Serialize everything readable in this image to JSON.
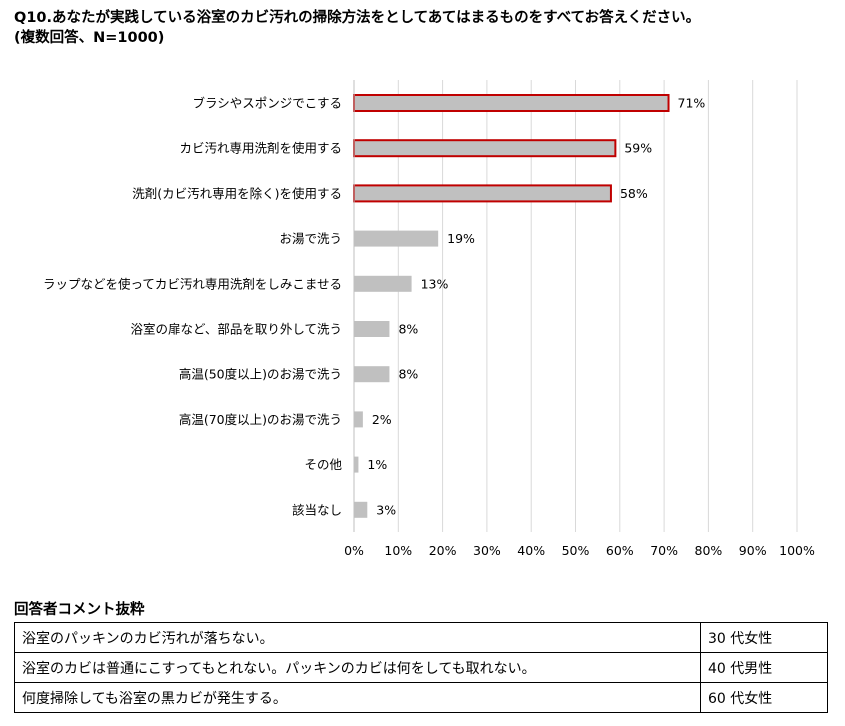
{
  "title_line1": "Q10.あなたが実践している浴室のカビ汚れの掃除方法をとしてあてはまるものをすべてお答えください。",
  "title_line2": "(複数回答、N=1000)",
  "chart_data": {
    "type": "bar",
    "orientation": "horizontal",
    "categories": [
      "ブラシやスポンジでこする",
      "カビ汚れ専用洗剤を使用する",
      "洗剤(カビ汚れ専用を除く)を使用する",
      "お湯で洗う",
      "ラップなどを使ってカビ汚れ専用洗剤をしみこませる",
      "浴室の扉など、部品を取り外して洗う",
      "高温(50度以上)のお湯で洗う",
      "高温(70度以上)のお湯で洗う",
      "その他",
      "該当なし"
    ],
    "values": [
      71,
      59,
      58,
      19,
      13,
      8,
      8,
      2,
      1,
      3
    ],
    "value_labels": [
      "71%",
      "59%",
      "58%",
      "19%",
      "13%",
      "8%",
      "8%",
      "2%",
      "1%",
      "3%"
    ],
    "highlighted": [
      true,
      true,
      true,
      false,
      false,
      false,
      false,
      false,
      false,
      false
    ],
    "xlim": [
      0,
      100
    ],
    "ticks": [
      "0%",
      "10%",
      "20%",
      "30%",
      "40%",
      "50%",
      "60%",
      "70%",
      "80%",
      "90%",
      "100%"
    ],
    "grid": true,
    "bar_color": "#c0c0c0",
    "highlight_color": "#c00000"
  },
  "comments": {
    "heading": "回答者コメント抜粋",
    "rows": [
      {
        "text": "浴室のパッキンのカビ汚れが落ちない。",
        "age": "30 代女性"
      },
      {
        "text": "浴室のカビは普通にこすってもとれない。パッキンのカビは何をしても取れない。",
        "age": "40 代男性"
      },
      {
        "text": "何度掃除しても浴室の黒カビが発生する。",
        "age": "60 代女性"
      }
    ]
  }
}
